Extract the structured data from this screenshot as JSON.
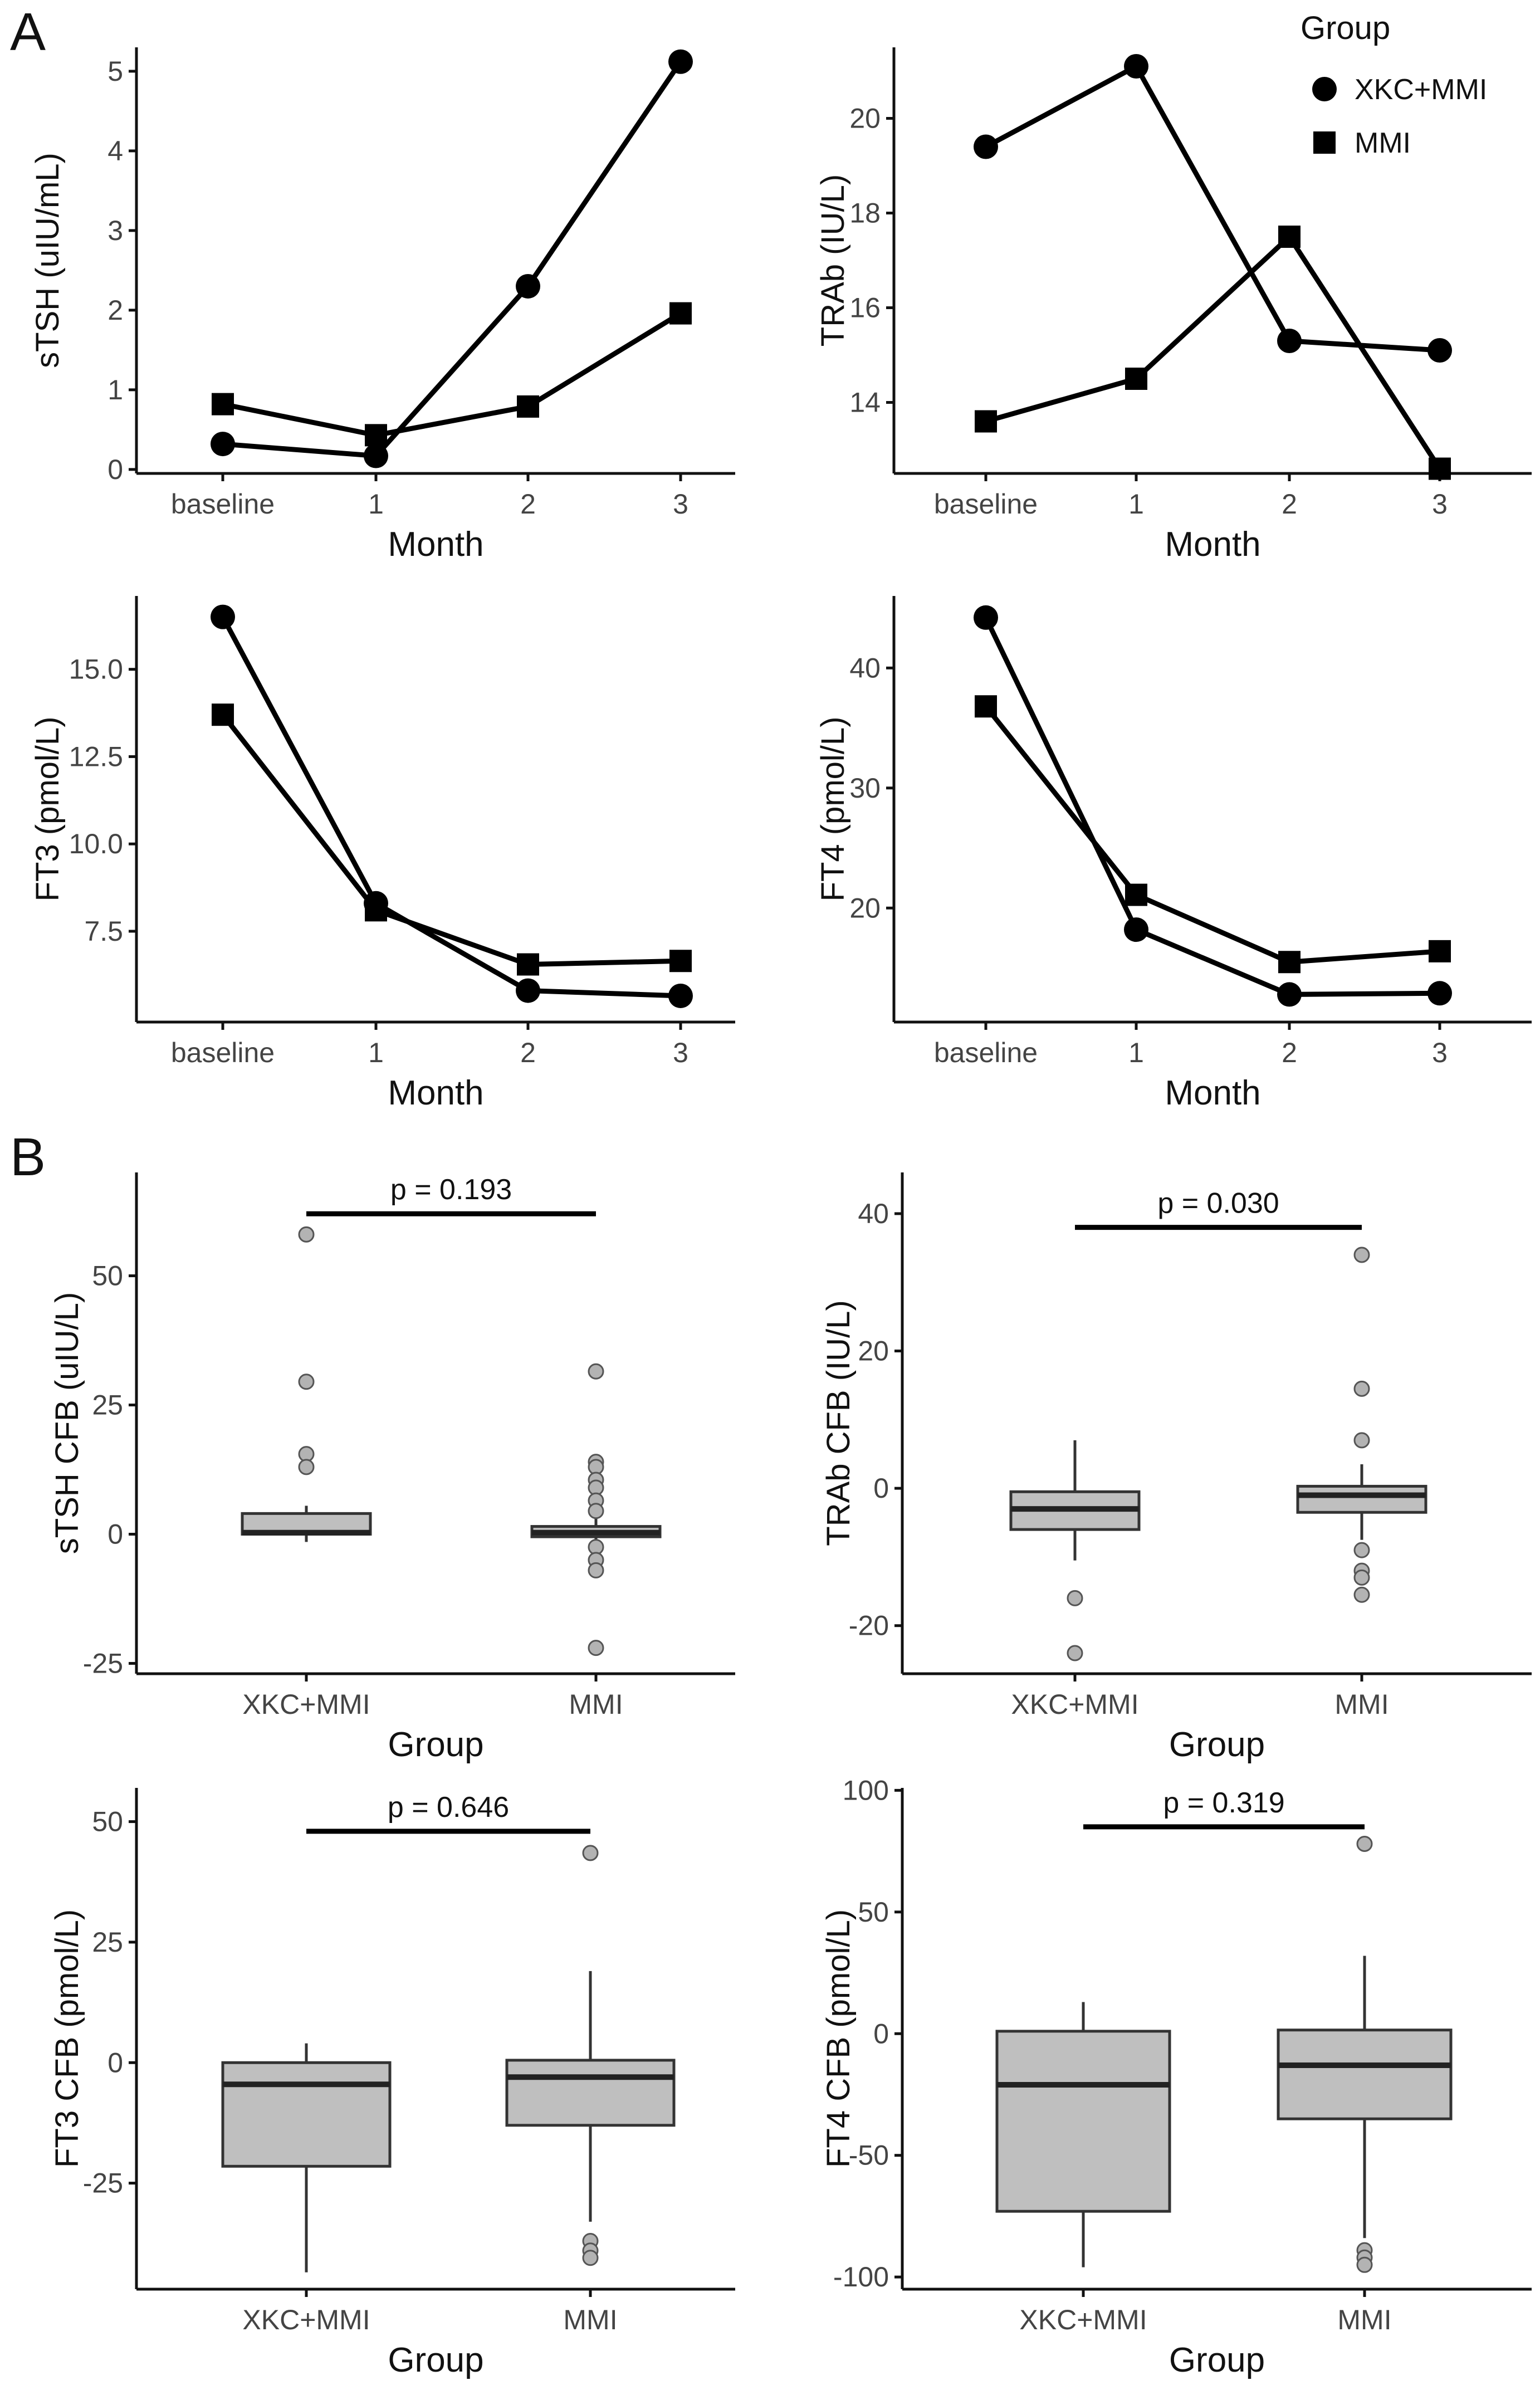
{
  "panel_labels": {
    "a": "A",
    "b": "B"
  },
  "legend": {
    "title": "Group",
    "items": [
      {
        "label": "XKC+MMI",
        "marker": "circle"
      },
      {
        "label": "MMI",
        "marker": "square"
      }
    ]
  },
  "chart_data": [
    {
      "id": "a1",
      "type": "line",
      "categories": [
        "baseline",
        "1",
        "2",
        "3"
      ],
      "xlabel": "Month",
      "ylabel": "sTSH (uIU/mL)",
      "ylim": [
        -0.05,
        5.3
      ],
      "yticks": [
        0,
        1,
        2,
        3,
        4,
        5
      ],
      "ytick_labels": [
        "0",
        "1",
        "2",
        "3",
        "4",
        "5"
      ],
      "series": [
        {
          "name": "XKC+MMI",
          "marker": "circle",
          "values": [
            0.32,
            0.17,
            2.3,
            5.12
          ]
        },
        {
          "name": "MMI",
          "marker": "square",
          "values": [
            0.82,
            0.43,
            0.79,
            1.96
          ]
        }
      ]
    },
    {
      "id": "a2",
      "type": "line",
      "categories": [
        "baseline",
        "1",
        "2",
        "3"
      ],
      "xlabel": "Month",
      "ylabel": "TRAb (IU/L)",
      "ylim": [
        12.5,
        21.5
      ],
      "yticks": [
        14,
        16,
        18,
        20
      ],
      "ytick_labels": [
        "14",
        "16",
        "18",
        "20"
      ],
      "series": [
        {
          "name": "XKC+MMI",
          "marker": "circle",
          "values": [
            19.4,
            21.1,
            15.3,
            15.1
          ]
        },
        {
          "name": "MMI",
          "marker": "square",
          "values": [
            13.6,
            14.5,
            17.5,
            12.6
          ]
        }
      ]
    },
    {
      "id": "a3",
      "type": "line",
      "categories": [
        "baseline",
        "1",
        "2",
        "3"
      ],
      "xlabel": "Month",
      "ylabel": "FT3 (pmol/L)",
      "ylim": [
        4.9,
        17.1
      ],
      "yticks": [
        7.5,
        10.0,
        12.5,
        15.0
      ],
      "ytick_labels": [
        "7.5",
        "10.0",
        "12.5",
        "15.0"
      ],
      "series": [
        {
          "name": "XKC+MMI",
          "marker": "circle",
          "values": [
            16.5,
            8.3,
            5.8,
            5.65
          ]
        },
        {
          "name": "MMI",
          "marker": "square",
          "values": [
            13.7,
            8.1,
            6.55,
            6.65
          ]
        }
      ]
    },
    {
      "id": "a4",
      "type": "line",
      "categories": [
        "baseline",
        "1",
        "2",
        "3"
      ],
      "xlabel": "Month",
      "ylabel": "FT4 (pmol/L)",
      "ylim": [
        10.5,
        46
      ],
      "yticks": [
        20,
        30,
        40
      ],
      "ytick_labels": [
        "20",
        "30",
        "40"
      ],
      "series": [
        {
          "name": "XKC+MMI",
          "marker": "circle",
          "values": [
            44.2,
            18.2,
            12.8,
            12.9
          ]
        },
        {
          "name": "MMI",
          "marker": "square",
          "values": [
            36.8,
            21.1,
            15.5,
            16.4
          ]
        }
      ]
    },
    {
      "id": "b1",
      "type": "box",
      "categories": [
        "XKC+MMI",
        "MMI"
      ],
      "xlabel": "Group",
      "ylabel": "sTSH CFB (uIU/L)",
      "ylim": [
        -27,
        70
      ],
      "yticks": [
        -25,
        0,
        25,
        50
      ],
      "ytick_labels": [
        "-25",
        "0",
        "25",
        "50"
      ],
      "pvalue": "p = 0.193",
      "bracket_y": 62,
      "boxes": [
        {
          "group": "XKC+MMI",
          "q1": 0,
          "median": 0.3,
          "q3": 4,
          "whisker_low": -1.5,
          "whisker_high": 5.5,
          "outliers": [
            58,
            29.5,
            15.5,
            13
          ]
        },
        {
          "group": "MMI",
          "q1": -0.5,
          "median": 0.3,
          "q3": 1.5,
          "whisker_low": -1.5,
          "whisker_high": 3,
          "outliers": [
            31.5,
            14,
            13,
            10.5,
            9,
            6.5,
            4.5,
            -2.5,
            -5,
            -7,
            -22
          ]
        }
      ]
    },
    {
      "id": "b2",
      "type": "box",
      "categories": [
        "XKC+MMI",
        "MMI"
      ],
      "xlabel": "Group",
      "ylabel": "TRAb CFB (IU/L)",
      "ylim": [
        -27,
        46
      ],
      "yticks": [
        -20,
        0,
        20,
        40
      ],
      "ytick_labels": [
        "-20",
        "0",
        "20",
        "40"
      ],
      "pvalue": "p = 0.030",
      "bracket_y": 38,
      "boxes": [
        {
          "group": "XKC+MMI",
          "q1": -6,
          "median": -3,
          "q3": -0.5,
          "whisker_low": -10.5,
          "whisker_high": 7,
          "outliers": [
            -16,
            -24
          ]
        },
        {
          "group": "MMI",
          "q1": -3.5,
          "median": -1,
          "q3": 0.3,
          "whisker_low": -7.5,
          "whisker_high": 3.5,
          "outliers": [
            34,
            14.5,
            7,
            -9,
            -12,
            -13,
            -15.5
          ]
        }
      ]
    },
    {
      "id": "b3",
      "type": "box",
      "categories": [
        "XKC+MMI",
        "MMI"
      ],
      "xlabel": "Group",
      "ylabel": "FT3 CFB (pmol/L)",
      "ylim": [
        -47,
        57
      ],
      "yticks": [
        -25,
        0,
        25,
        50
      ],
      "ytick_labels": [
        "-25",
        "0",
        "25",
        "50"
      ],
      "pvalue": "p = 0.646",
      "bracket_y": 48,
      "boxes": [
        {
          "group": "XKC+MMI",
          "q1": -21.5,
          "median": -4.5,
          "q3": 0,
          "whisker_low": -43.5,
          "whisker_high": 4,
          "outliers": []
        },
        {
          "group": "MMI",
          "q1": -13,
          "median": -3,
          "q3": 0.5,
          "whisker_low": -33,
          "whisker_high": 19,
          "outliers": [
            43.5,
            -37,
            -39,
            -40.5
          ]
        }
      ]
    },
    {
      "id": "b4",
      "type": "box",
      "categories": [
        "XKC+MMI",
        "MMI"
      ],
      "xlabel": "Group",
      "ylabel": "FT4 CFB (pmol/L)",
      "ylim": [
        -105,
        101
      ],
      "yticks": [
        -100,
        -50,
        0,
        50,
        100
      ],
      "ytick_labels": [
        "-100",
        "-50",
        "0",
        "50",
        "100"
      ],
      "pvalue": "p = 0.319",
      "bracket_y": 85,
      "boxes": [
        {
          "group": "XKC+MMI",
          "q1": -73,
          "median": -21,
          "q3": 1,
          "whisker_low": -96,
          "whisker_high": 13,
          "outliers": []
        },
        {
          "group": "MMI",
          "q1": -35,
          "median": -13,
          "q3": 1.5,
          "whisker_low": -84,
          "whisker_high": 32,
          "outliers": [
            78,
            -89,
            -92,
            -95
          ]
        }
      ]
    }
  ]
}
